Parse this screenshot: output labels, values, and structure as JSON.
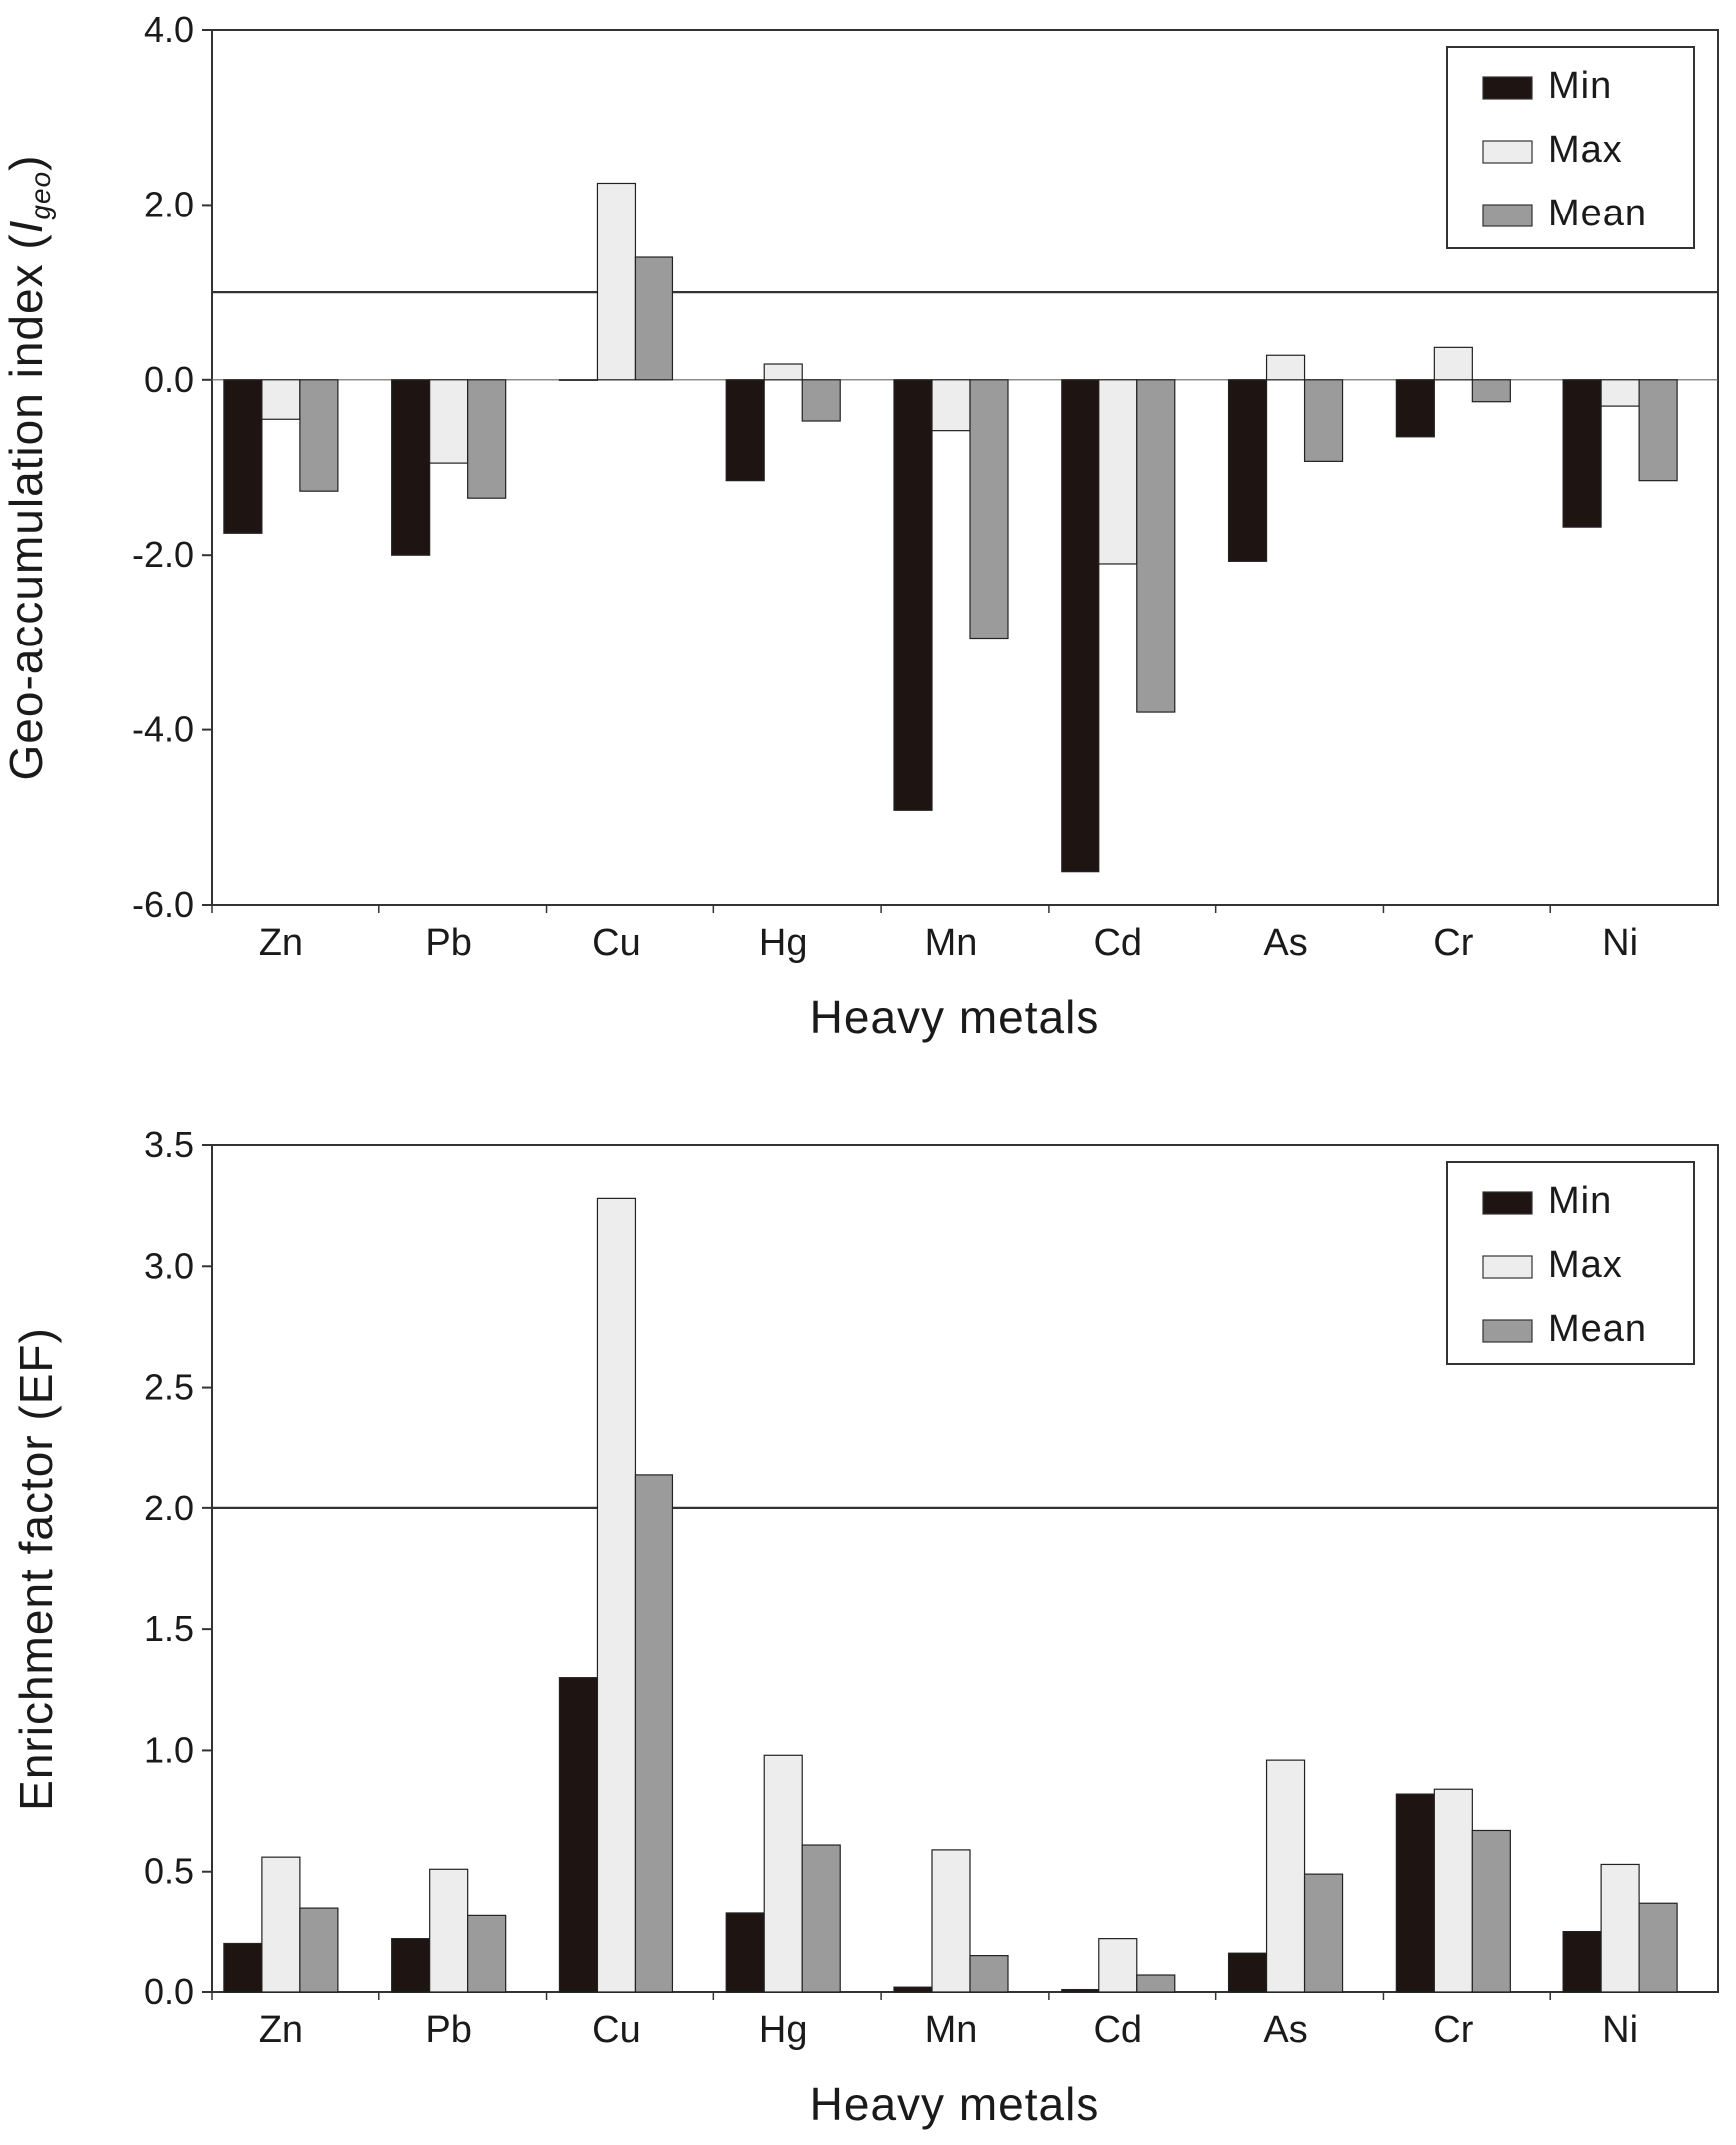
{
  "chart_data": [
    {
      "type": "bar",
      "categories": [
        "Zn",
        "Pb",
        "Cu",
        "Hg",
        "Mn",
        "Cd",
        "As",
        "Cr",
        "Ni"
      ],
      "series": [
        {
          "name": "Min",
          "values": [
            -1.75,
            -2.0,
            0.0,
            -1.15,
            -4.92,
            -5.62,
            -2.07,
            -0.65,
            -1.68
          ]
        },
        {
          "name": "Max",
          "values": [
            -0.45,
            -0.95,
            2.25,
            0.18,
            -0.58,
            -2.1,
            0.28,
            0.37,
            -0.3
          ]
        },
        {
          "name": "Mean",
          "values": [
            -1.27,
            -1.35,
            1.4,
            -0.47,
            -2.95,
            -3.8,
            -0.93,
            -0.25,
            -1.15
          ]
        }
      ],
      "ylim": [
        -6.0,
        4.0
      ],
      "yticks": [
        "-6.0",
        "-4.0",
        "-2.0",
        "0.0",
        "2.0",
        "4.0"
      ],
      "reference_line": 1.0,
      "xlabel": "Heavy metals",
      "ylabel": "Geo-accumulation index (",
      "ylabel_symbol": "I",
      "ylabel_subscript": "geo",
      "ylabel_close": ")",
      "legend_position": "top-right",
      "grid": false
    },
    {
      "type": "bar",
      "categories": [
        "Zn",
        "Pb",
        "Cu",
        "Hg",
        "Mn",
        "Cd",
        "As",
        "Cr",
        "Ni"
      ],
      "series": [
        {
          "name": "Min",
          "values": [
            0.2,
            0.22,
            1.3,
            0.33,
            0.02,
            0.01,
            0.16,
            0.82,
            0.25
          ]
        },
        {
          "name": "Max",
          "values": [
            0.56,
            0.51,
            3.28,
            0.98,
            0.59,
            0.22,
            0.96,
            0.84,
            0.53
          ]
        },
        {
          "name": "Mean",
          "values": [
            0.35,
            0.32,
            2.14,
            0.61,
            0.15,
            0.07,
            0.49,
            0.67,
            0.37
          ]
        }
      ],
      "ylim": [
        0.0,
        3.5
      ],
      "yticks": [
        "0.0",
        "0.5",
        "1.0",
        "1.5",
        "2.0",
        "2.5",
        "3.0",
        "3.5"
      ],
      "reference_line": 2.0,
      "xlabel": "Heavy metals",
      "ylabel": "Enrichment factor (EF)",
      "legend_position": "top-right",
      "grid": false
    }
  ],
  "colors": {
    "Min": "#1e1412",
    "Max": "#ededed",
    "Mean": "#9b9b9b",
    "axis": "#333333"
  }
}
